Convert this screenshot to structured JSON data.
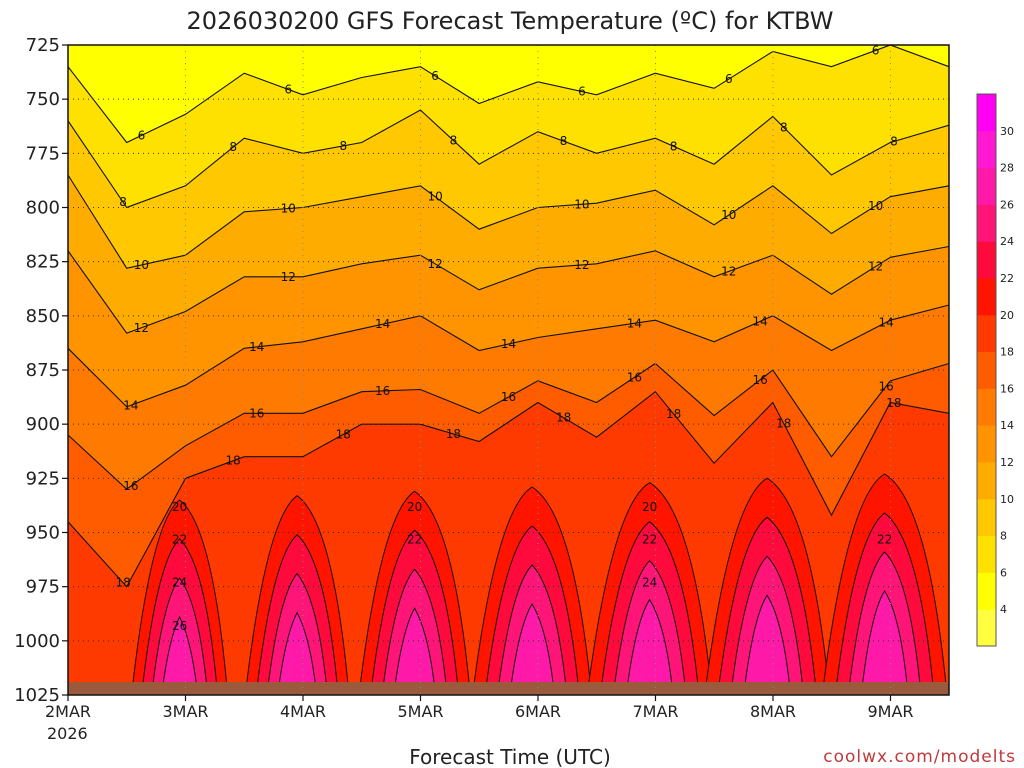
{
  "chart_data": {
    "type": "heatmap",
    "title": "2026030200 GFS Forecast Temperature (ºC) for KTBW",
    "xlabel": "Forecast Time (UTC)",
    "ylabel": "",
    "credit": "coolwx.com/modelts",
    "y_axis": {
      "ticks": [
        725,
        750,
        775,
        800,
        825,
        850,
        875,
        900,
        925,
        950,
        975,
        1000,
        1025
      ],
      "range": [
        725,
        1025
      ],
      "inverted": true
    },
    "x_axis": {
      "ticks": [
        "2MAR",
        "3MAR",
        "4MAR",
        "5MAR",
        "6MAR",
        "7MAR",
        "8MAR",
        "9MAR"
      ],
      "first_tick_year": "2026",
      "grid": "dotted"
    },
    "colorbar": {
      "levels": [
        4,
        6,
        8,
        10,
        12,
        14,
        16,
        18,
        20,
        22,
        24,
        26,
        28,
        30
      ],
      "colors": [
        "#ffff00",
        "#ffe100",
        "#ffc800",
        "#ffac00",
        "#ff9400",
        "#ff7a00",
        "#ff5c00",
        "#ff3a00",
        "#ff1400",
        "#ff0a3c",
        "#ff1478",
        "#ff19a8",
        "#ff19d2",
        "#ff00f5"
      ],
      "min_color": "#ffff40"
    },
    "isotherms": [
      {
        "value": 6,
        "pressure": [
          735,
          770,
          757,
          738,
          748,
          740,
          735,
          752,
          742,
          748,
          738,
          745,
          728,
          735,
          725,
          735
        ]
      },
      {
        "value": 8,
        "pressure": [
          760,
          800,
          790,
          768,
          775,
          770,
          755,
          780,
          765,
          775,
          768,
          780,
          758,
          785,
          770,
          762
        ]
      },
      {
        "value": 10,
        "pressure": [
          785,
          828,
          822,
          802,
          800,
          795,
          790,
          810,
          800,
          798,
          792,
          808,
          790,
          812,
          795,
          790
        ]
      },
      {
        "value": 12,
        "pressure": [
          820,
          858,
          848,
          832,
          832,
          826,
          822,
          838,
          828,
          826,
          820,
          832,
          822,
          840,
          823,
          818
        ]
      },
      {
        "value": 14,
        "pressure": [
          865,
          892,
          882,
          865,
          862,
          856,
          850,
          866,
          860,
          856,
          852,
          862,
          850,
          866,
          852,
          845
        ]
      },
      {
        "value": 16,
        "pressure": [
          905,
          930,
          910,
          895,
          895,
          885,
          884,
          895,
          880,
          890,
          872,
          896,
          875,
          915,
          880,
          872
        ]
      },
      {
        "value": 18,
        "pressure": [
          945,
          975,
          925,
          915,
          915,
          900,
          900,
          908,
          890,
          906,
          885,
          918,
          890,
          942,
          890,
          895
        ]
      }
    ],
    "contour_labels": [
      6,
      6,
      6,
      6,
      6,
      6,
      8,
      8,
      8,
      8,
      8,
      8,
      8,
      8,
      10,
      10,
      10,
      10,
      10,
      10,
      12,
      12,
      12,
      12,
      12,
      12,
      14,
      14,
      14,
      14,
      14,
      14,
      14,
      16,
      16,
      16,
      16,
      16,
      16,
      16,
      18,
      18,
      18,
      18,
      18,
      18,
      18,
      18,
      20,
      20,
      20,
      22,
      22,
      22,
      22,
      24,
      24,
      26
    ]
  }
}
